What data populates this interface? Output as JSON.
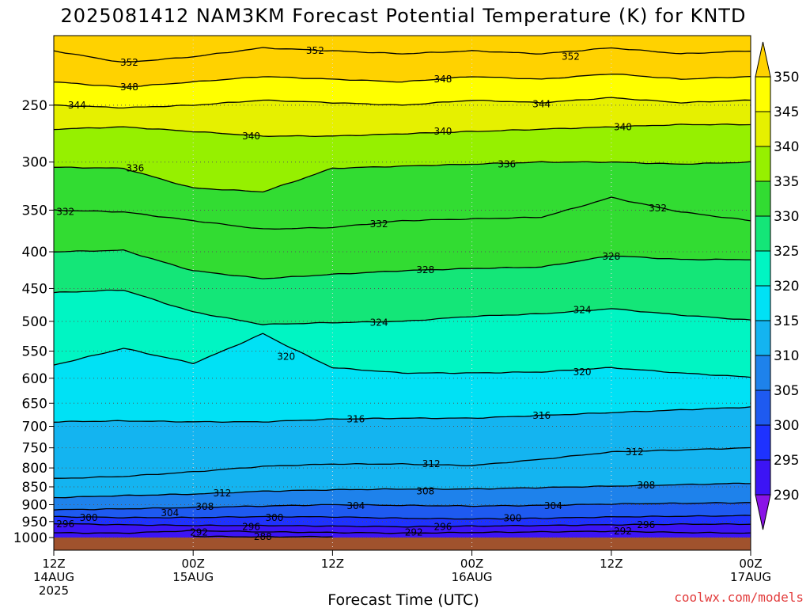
{
  "chart_data": {
    "type": "heatmap",
    "title": "2025081412 NAM3KM Forecast Potential Temperature (K) for KNTD",
    "xlabel": "Forecast Time (UTC)",
    "ylabel": "",
    "credit": "coolwx.com/models",
    "x_ticks": [
      {
        "hours": 0,
        "lines": [
          "12Z",
          "14AUG",
          "2025"
        ]
      },
      {
        "hours": 12,
        "lines": [
          "00Z",
          "15AUG"
        ]
      },
      {
        "hours": 24,
        "lines": [
          "12Z"
        ]
      },
      {
        "hours": 36,
        "lines": [
          "00Z",
          "16AUG"
        ]
      },
      {
        "hours": 48,
        "lines": [
          "12Z"
        ]
      },
      {
        "hours": 60,
        "lines": [
          "00Z",
          "17AUG"
        ]
      }
    ],
    "xlim": [
      0,
      60
    ],
    "y_ticks": [
      250,
      300,
      350,
      400,
      450,
      500,
      550,
      600,
      650,
      700,
      750,
      800,
      850,
      900,
      950,
      1000
    ],
    "ylim_hPa": [
      200,
      1000
    ],
    "y_scale": "log-pressure",
    "grid": "dotted",
    "colorbar": {
      "levels": [
        290,
        295,
        300,
        305,
        310,
        315,
        320,
        325,
        330,
        335,
        340,
        345,
        350
      ],
      "colors": [
        "#8a14e6",
        "#3c14f5",
        "#1e32ff",
        "#1e5af0",
        "#1e82eb",
        "#14b4f0",
        "#00e1f5",
        "#00f5c3",
        "#14e678",
        "#32dc32",
        "#96f000",
        "#e6f000",
        "#ffff00",
        "#ffd200"
      ],
      "extend": "both",
      "position": "right"
    },
    "isentropes": [
      {
        "theta": 352,
        "p": [
          [
            0,
            210
          ],
          [
            6,
            218
          ],
          [
            12,
            214
          ],
          [
            18,
            208
          ],
          [
            24,
            210
          ],
          [
            30,
            212
          ],
          [
            36,
            210
          ],
          [
            42,
            212
          ],
          [
            48,
            208
          ],
          [
            54,
            212
          ],
          [
            60,
            210
          ]
        ]
      },
      {
        "theta": 348,
        "p": [
          [
            0,
            232
          ],
          [
            6,
            236
          ],
          [
            12,
            232
          ],
          [
            18,
            228
          ],
          [
            24,
            230
          ],
          [
            30,
            232
          ],
          [
            36,
            228
          ],
          [
            42,
            230
          ],
          [
            48,
            226
          ],
          [
            54,
            230
          ],
          [
            60,
            228
          ]
        ]
      },
      {
        "theta": 344,
        "p": [
          [
            0,
            250
          ],
          [
            6,
            252
          ],
          [
            12,
            250
          ],
          [
            18,
            246
          ],
          [
            24,
            248
          ],
          [
            30,
            250
          ],
          [
            36,
            246
          ],
          [
            42,
            248
          ],
          [
            48,
            244
          ],
          [
            54,
            248
          ],
          [
            60,
            246
          ]
        ]
      },
      {
        "theta": 340,
        "p": [
          [
            0,
            270
          ],
          [
            6,
            268
          ],
          [
            12,
            272
          ],
          [
            18,
            276
          ],
          [
            24,
            276
          ],
          [
            30,
            274
          ],
          [
            36,
            272
          ],
          [
            42,
            270
          ],
          [
            48,
            268
          ],
          [
            54,
            266
          ],
          [
            60,
            266
          ]
        ]
      },
      {
        "theta": 336,
        "p": [
          [
            0,
            305
          ],
          [
            6,
            306
          ],
          [
            12,
            326
          ],
          [
            18,
            330
          ],
          [
            24,
            306
          ],
          [
            30,
            304
          ],
          [
            36,
            302
          ],
          [
            42,
            300
          ],
          [
            48,
            300
          ],
          [
            54,
            302
          ],
          [
            60,
            300
          ]
        ]
      },
      {
        "theta": 332,
        "p": [
          [
            0,
            350
          ],
          [
            6,
            352
          ],
          [
            12,
            362
          ],
          [
            18,
            372
          ],
          [
            24,
            370
          ],
          [
            30,
            362
          ],
          [
            36,
            360
          ],
          [
            42,
            358
          ],
          [
            48,
            336
          ],
          [
            54,
            352
          ],
          [
            60,
            362
          ]
        ]
      },
      {
        "theta": 328,
        "p": [
          [
            0,
            400
          ],
          [
            6,
            398
          ],
          [
            12,
            425
          ],
          [
            18,
            436
          ],
          [
            24,
            430
          ],
          [
            30,
            425
          ],
          [
            36,
            422
          ],
          [
            42,
            420
          ],
          [
            48,
            405
          ],
          [
            54,
            410
          ],
          [
            60,
            410
          ]
        ]
      },
      {
        "theta": 324,
        "p": [
          [
            0,
            456
          ],
          [
            6,
            452
          ],
          [
            12,
            485
          ],
          [
            18,
            505
          ],
          [
            24,
            502
          ],
          [
            30,
            500
          ],
          [
            36,
            492
          ],
          [
            42,
            488
          ],
          [
            48,
            480
          ],
          [
            54,
            490
          ],
          [
            60,
            498
          ]
        ]
      },
      {
        "theta": 320,
        "p": [
          [
            0,
            575
          ],
          [
            6,
            545
          ],
          [
            12,
            572
          ],
          [
            18,
            520
          ],
          [
            24,
            580
          ],
          [
            30,
            590
          ],
          [
            36,
            590
          ],
          [
            42,
            588
          ],
          [
            48,
            580
          ],
          [
            54,
            590
          ],
          [
            60,
            598
          ]
        ]
      },
      {
        "theta": 316,
        "p": [
          [
            0,
            690
          ],
          [
            6,
            688
          ],
          [
            12,
            690
          ],
          [
            18,
            690
          ],
          [
            24,
            684
          ],
          [
            30,
            682
          ],
          [
            36,
            682
          ],
          [
            42,
            676
          ],
          [
            48,
            670
          ],
          [
            54,
            664
          ],
          [
            60,
            658
          ]
        ]
      },
      {
        "theta": 312,
        "p": [
          [
            0,
            828
          ],
          [
            6,
            822
          ],
          [
            12,
            810
          ],
          [
            18,
            796
          ],
          [
            24,
            790
          ],
          [
            30,
            790
          ],
          [
            36,
            794
          ],
          [
            42,
            778
          ],
          [
            48,
            760
          ],
          [
            54,
            755
          ],
          [
            60,
            750
          ]
        ]
      },
      {
        "theta": 308,
        "p": [
          [
            0,
            880
          ],
          [
            6,
            874
          ],
          [
            12,
            870
          ],
          [
            18,
            862
          ],
          [
            24,
            858
          ],
          [
            30,
            856
          ],
          [
            36,
            856
          ],
          [
            42,
            852
          ],
          [
            48,
            848
          ],
          [
            54,
            844
          ],
          [
            60,
            840
          ]
        ]
      },
      {
        "theta": 304,
        "p": [
          [
            0,
            915
          ],
          [
            6,
            912
          ],
          [
            12,
            908
          ],
          [
            18,
            904
          ],
          [
            24,
            900
          ],
          [
            30,
            902
          ],
          [
            36,
            904
          ],
          [
            42,
            902
          ],
          [
            48,
            898
          ],
          [
            54,
            896
          ],
          [
            60,
            894
          ]
        ]
      },
      {
        "theta": 300,
        "p": [
          [
            0,
            935
          ],
          [
            6,
            938
          ],
          [
            12,
            938
          ],
          [
            18,
            935
          ],
          [
            24,
            936
          ],
          [
            30,
            940
          ],
          [
            36,
            942
          ],
          [
            42,
            940
          ],
          [
            48,
            936
          ],
          [
            54,
            934
          ],
          [
            60,
            932
          ]
        ]
      },
      {
        "theta": 296,
        "p": [
          [
            0,
            956
          ],
          [
            6,
            960
          ],
          [
            12,
            962
          ],
          [
            18,
            962
          ],
          [
            24,
            964
          ],
          [
            30,
            966
          ],
          [
            36,
            964
          ],
          [
            42,
            962
          ],
          [
            48,
            960
          ],
          [
            54,
            958
          ],
          [
            60,
            958
          ]
        ]
      },
      {
        "theta": 292,
        "p": [
          [
            0,
            985
          ],
          [
            6,
            986
          ],
          [
            12,
            978
          ],
          [
            18,
            982
          ],
          [
            24,
            984
          ],
          [
            30,
            986
          ],
          [
            36,
            984
          ],
          [
            42,
            982
          ],
          [
            48,
            980
          ],
          [
            54,
            984
          ],
          [
            60,
            986
          ]
        ]
      },
      {
        "theta": 288,
        "p": [
          [
            12,
            996
          ],
          [
            18,
            998
          ],
          [
            24,
            997
          ]
        ]
      }
    ],
    "contour_labels": [
      {
        "text": "352",
        "hours": 6.5,
        "p": 218
      },
      {
        "text": "352",
        "hours": 22.5,
        "p": 210
      },
      {
        "text": "352",
        "hours": 44.5,
        "p": 214
      },
      {
        "text": "348",
        "hours": 6.5,
        "p": 236
      },
      {
        "text": "348",
        "hours": 33.5,
        "p": 230
      },
      {
        "text": "344",
        "hours": 2.0,
        "p": 250
      },
      {
        "text": "344",
        "hours": 42.0,
        "p": 249
      },
      {
        "text": "340",
        "hours": 17.0,
        "p": 276
      },
      {
        "text": "340",
        "hours": 33.5,
        "p": 272
      },
      {
        "text": "340",
        "hours": 49.0,
        "p": 268
      },
      {
        "text": "336",
        "hours": 7.0,
        "p": 306
      },
      {
        "text": "336",
        "hours": 39.0,
        "p": 302
      },
      {
        "text": "332",
        "hours": 1.0,
        "p": 352
      },
      {
        "text": "332",
        "hours": 28.0,
        "p": 366
      },
      {
        "text": "332",
        "hours": 52.0,
        "p": 348
      },
      {
        "text": "328",
        "hours": 32.0,
        "p": 424
      },
      {
        "text": "328",
        "hours": 48.0,
        "p": 406
      },
      {
        "text": "324",
        "hours": 28.0,
        "p": 502
      },
      {
        "text": "324",
        "hours": 45.5,
        "p": 482
      },
      {
        "text": "320",
        "hours": 20.0,
        "p": 560
      },
      {
        "text": "320",
        "hours": 45.5,
        "p": 588
      },
      {
        "text": "316",
        "hours": 26.0,
        "p": 684
      },
      {
        "text": "316",
        "hours": 42.0,
        "p": 676
      },
      {
        "text": "312",
        "hours": 14.5,
        "p": 868
      },
      {
        "text": "312",
        "hours": 32.5,
        "p": 790
      },
      {
        "text": "312",
        "hours": 50.0,
        "p": 760
      },
      {
        "text": "308",
        "hours": 13.0,
        "p": 906
      },
      {
        "text": "308",
        "hours": 32.0,
        "p": 862
      },
      {
        "text": "308",
        "hours": 51.0,
        "p": 846
      },
      {
        "text": "304",
        "hours": 10.0,
        "p": 924
      },
      {
        "text": "304",
        "hours": 26.0,
        "p": 904
      },
      {
        "text": "304",
        "hours": 43.0,
        "p": 904
      },
      {
        "text": "300",
        "hours": 3.0,
        "p": 938
      },
      {
        "text": "300",
        "hours": 19.0,
        "p": 938
      },
      {
        "text": "300",
        "hours": 39.5,
        "p": 940
      },
      {
        "text": "296",
        "hours": 1.0,
        "p": 958
      },
      {
        "text": "296",
        "hours": 17.0,
        "p": 966
      },
      {
        "text": "296",
        "hours": 33.5,
        "p": 966
      },
      {
        "text": "296",
        "hours": 51.0,
        "p": 960
      },
      {
        "text": "292",
        "hours": 12.5,
        "p": 984
      },
      {
        "text": "292",
        "hours": 31.0,
        "p": 984
      },
      {
        "text": "292",
        "hours": 49.0,
        "p": 980
      },
      {
        "text": "288",
        "hours": 18.0,
        "p": 997
      }
    ]
  }
}
